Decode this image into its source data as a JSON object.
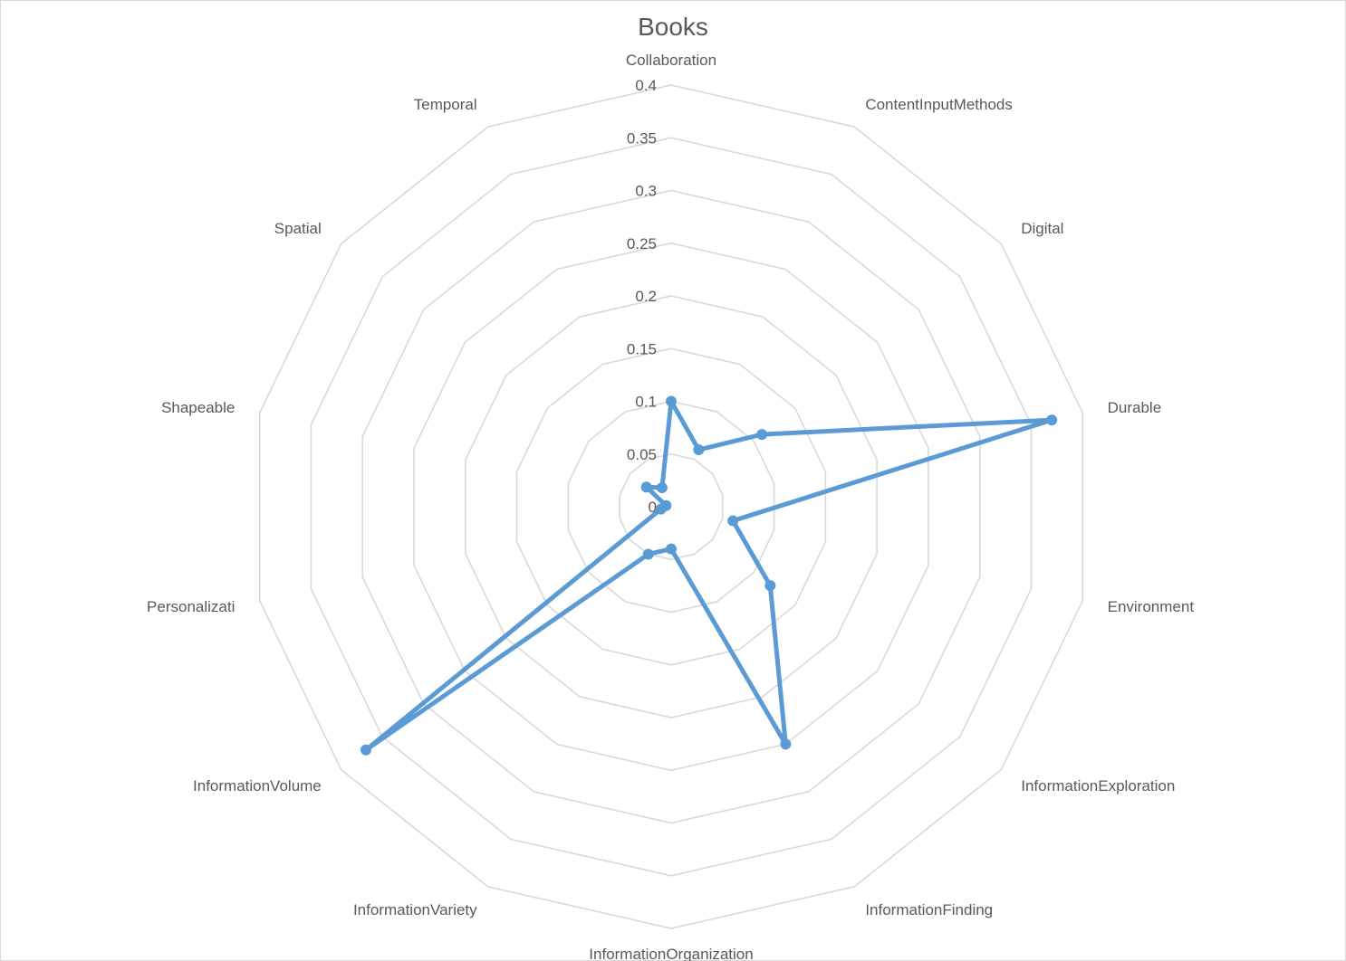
{
  "chart_data": {
    "type": "radar",
    "title": "Books",
    "axes": [
      "Collaboration",
      "ContentInputMethods",
      "Digital",
      "Durable",
      "Environment",
      "InformationExploration",
      "InformationFinding",
      "InformationOrganization",
      "InformationVariety",
      "InformationVolume",
      "Personalizati",
      "Shapeable",
      "Spatial",
      "Temporal"
    ],
    "ticks": [
      "0",
      "0.05",
      "0.1",
      "0.15",
      "0.2",
      "0.25",
      "0.3",
      "0.35",
      "0.4"
    ],
    "rmax": 0.4,
    "grid": true,
    "series": [
      {
        "values": [
          0.1,
          0.06,
          0.11,
          0.37,
          0.06,
          0.12,
          0.25,
          0.04,
          0.05,
          0.37,
          0.01,
          0.005,
          0.03,
          0.02
        ]
      }
    ],
    "colors": {
      "series": "#5b9bd5",
      "grid": "#d9d9d9",
      "text": "#595959"
    }
  }
}
